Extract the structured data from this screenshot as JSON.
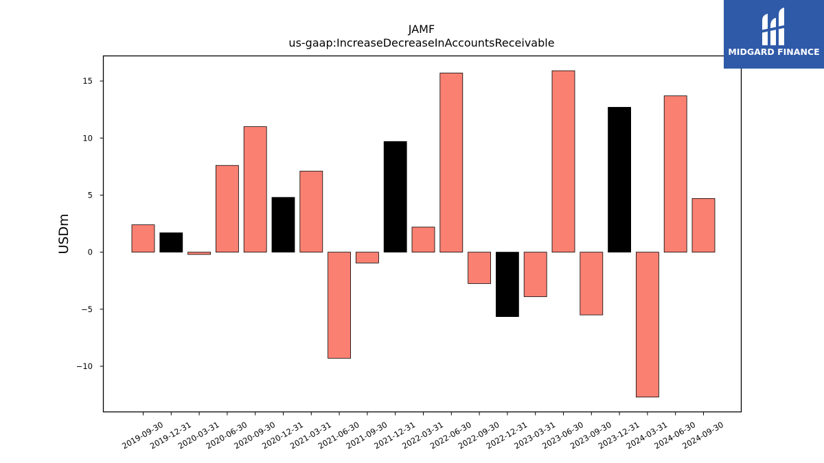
{
  "chart_data": {
    "type": "bar",
    "title": "JAMF",
    "subtitle": "us-gaap:IncreaseDecreaseInAccountsReceivable",
    "xlabel": "",
    "ylabel": "USDm",
    "ylim": [
      -14.0,
      17.2
    ],
    "yticks": [
      15,
      10,
      5,
      0,
      -5,
      -10
    ],
    "ytick_labels": [
      "15",
      "10",
      "5",
      "0",
      "−5",
      "−10"
    ],
    "grid": false,
    "categories": [
      "2019-09-30",
      "2019-12-31",
      "2020-03-31",
      "2020-06-30",
      "2020-09-30",
      "2020-12-31",
      "2021-03-31",
      "2021-06-30",
      "2021-09-30",
      "2021-12-31",
      "2022-03-31",
      "2022-06-30",
      "2022-09-30",
      "2022-12-31",
      "2023-03-31",
      "2023-06-30",
      "2023-09-30",
      "2023-12-31",
      "2024-03-31",
      "2024-06-30",
      "2024-09-30"
    ],
    "values": [
      2.4,
      1.7,
      -0.2,
      7.6,
      11.0,
      4.8,
      7.1,
      -9.3,
      -0.95,
      9.7,
      2.2,
      15.7,
      -2.75,
      -5.65,
      -3.9,
      15.9,
      -5.5,
      12.7,
      -12.7,
      13.7,
      4.7
    ],
    "bar_colors": [
      "#fa8072",
      "#000000",
      "#fa8072",
      "#fa8072",
      "#fa8072",
      "#000000",
      "#fa8072",
      "#fa8072",
      "#fa8072",
      "#000000",
      "#fa8072",
      "#fa8072",
      "#fa8072",
      "#000000",
      "#fa8072",
      "#fa8072",
      "#fa8072",
      "#000000",
      "#fa8072",
      "#fa8072",
      "#fa8072"
    ],
    "colors": {
      "quarter": "#fa8072",
      "year_end": "#000000"
    }
  },
  "logo": {
    "text": "MIDGARD FINANCE",
    "background": "#2f5aa8",
    "icon": "midgard-logo-icon"
  }
}
